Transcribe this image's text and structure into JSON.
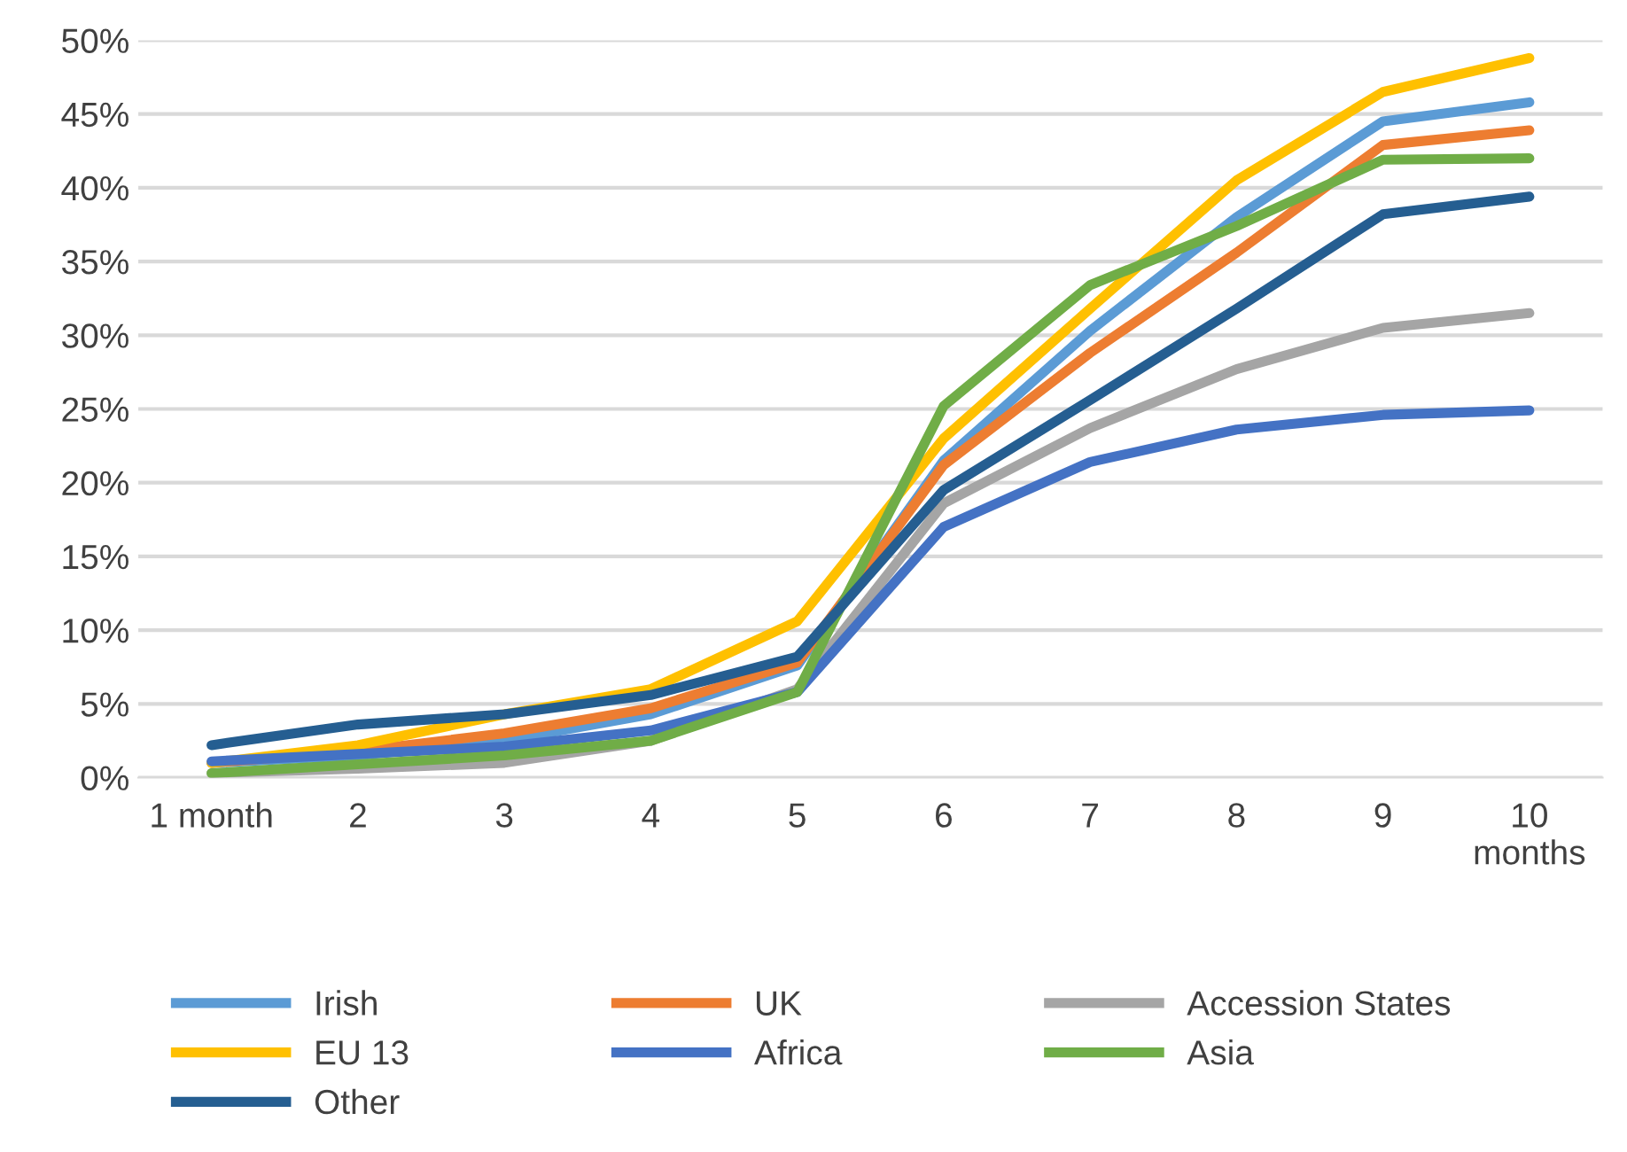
{
  "chart_data": {
    "type": "line",
    "categories": [
      "1 month",
      "2",
      "3",
      "4",
      "5",
      "6",
      "7",
      "8",
      "9",
      "10\nmonths"
    ],
    "ylim": [
      0,
      50
    ],
    "yticks": [
      {
        "value": 0,
        "label": "0%"
      },
      {
        "value": 5,
        "label": "5%"
      },
      {
        "value": 10,
        "label": "10%"
      },
      {
        "value": 15,
        "label": "15%"
      },
      {
        "value": 20,
        "label": "20%"
      },
      {
        "value": 25,
        "label": "25%"
      },
      {
        "value": 30,
        "label": "30%"
      },
      {
        "value": 35,
        "label": "35%"
      },
      {
        "value": 40,
        "label": "40%"
      },
      {
        "value": 45,
        "label": "45%"
      },
      {
        "value": 50,
        "label": "50%"
      }
    ],
    "grid": "y",
    "legend": "bottom",
    "marker": "none",
    "line_style": "solid",
    "series": [
      {
        "name": "Irish",
        "color": "#5b9bd5",
        "values": [
          1.0,
          1.5,
          2.5,
          4.3,
          7.6,
          21.5,
          30.3,
          38.0,
          44.5,
          45.8
        ]
      },
      {
        "name": "UK",
        "color": "#ed7d31",
        "values": [
          1.0,
          1.8,
          3.0,
          4.7,
          7.8,
          21.2,
          28.8,
          35.6,
          42.9,
          43.9
        ]
      },
      {
        "name": "Accession States",
        "color": "#a5a5a5",
        "values": [
          0.3,
          0.6,
          1.0,
          2.5,
          6.0,
          18.6,
          23.7,
          27.7,
          30.5,
          31.5
        ]
      },
      {
        "name": "EU 13",
        "color": "#ffc000",
        "values": [
          1.0,
          2.2,
          4.3,
          6.0,
          10.6,
          23.0,
          31.8,
          40.5,
          46.5,
          48.8
        ]
      },
      {
        "name": "Africa",
        "color": "#4472c4",
        "values": [
          1.1,
          1.6,
          2.1,
          3.2,
          5.8,
          17.0,
          21.4,
          23.6,
          24.6,
          24.9
        ]
      },
      {
        "name": "Asia",
        "color": "#70ad47",
        "values": [
          0.3,
          0.9,
          1.5,
          2.5,
          5.8,
          25.2,
          33.4,
          37.4,
          41.9,
          42.0
        ]
      },
      {
        "name": "Other",
        "color": "#255e91",
        "values": [
          2.2,
          3.6,
          4.3,
          5.6,
          8.2,
          19.5,
          25.6,
          31.8,
          38.2,
          39.4
        ]
      }
    ]
  }
}
